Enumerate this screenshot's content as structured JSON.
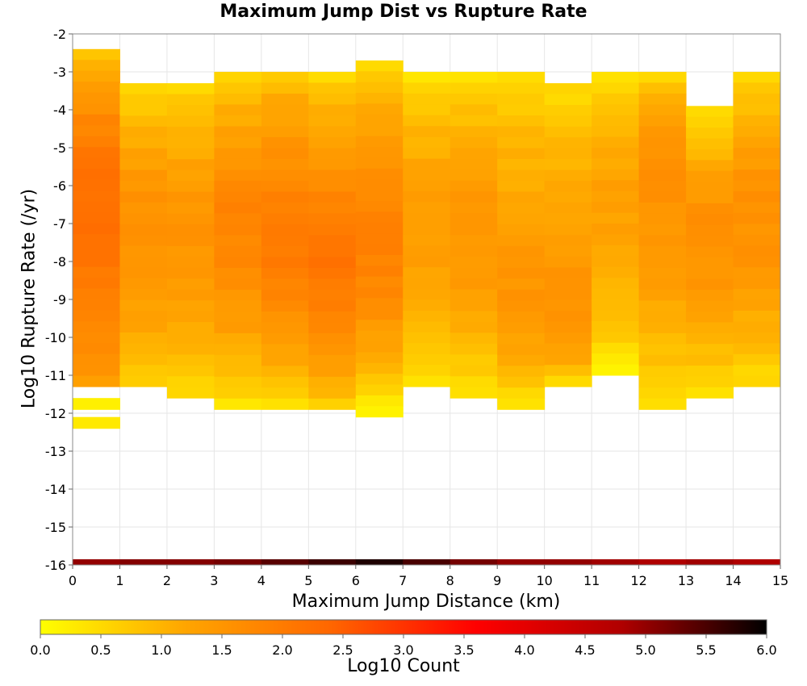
{
  "chart_data": {
    "type": "heatmap",
    "title": "Maximum Jump Dist vs Rupture Rate",
    "xlabel": "Maximum Jump Distance (km)",
    "ylabel": "Log10 Rupture Rate (/yr)",
    "colorbar_label": "Log10 Count",
    "xlim": [
      0,
      15
    ],
    "ylim": [
      -16,
      -2
    ],
    "x_ticks": [
      "0",
      "1",
      "2",
      "3",
      "4",
      "5",
      "6",
      "7",
      "8",
      "9",
      "10",
      "11",
      "12",
      "13",
      "14",
      "15"
    ],
    "y_ticks": [
      "-2",
      "-3",
      "-4",
      "-5",
      "-6",
      "-7",
      "-8",
      "-9",
      "-10",
      "-11",
      "-12",
      "-13",
      "-14",
      "-15",
      "-16"
    ],
    "colorbar_ticks": [
      "0.0",
      "0.5",
      "1.0",
      "1.5",
      "2.0",
      "2.5",
      "3.0",
      "3.5",
      "4.0",
      "4.5",
      "5.0",
      "5.5",
      "6.0"
    ],
    "colorbar_range": [
      0,
      6
    ],
    "colorscale": [
      "#ffff00",
      "#ffa500",
      "#ff6600",
      "#ff0000",
      "#b00000",
      "#000000"
    ],
    "grid": true,
    "y_bin_width": 0.2857,
    "columns": [
      {
        "x": 0,
        "y_max": -2.4,
        "y_min": -11.3,
        "peak": -5.8,
        "top_count": 0.6,
        "peak_count": 2.2,
        "bottom_count": 1.3,
        "isolated": [
          [
            -11.6,
            -11.9,
            0.2
          ],
          [
            -12.1,
            -12.4,
            0.3
          ]
        ]
      },
      {
        "x": 1,
        "y_max": -3.3,
        "y_min": -11.3,
        "peak": -6.5,
        "top_count": 0.2,
        "peak_count": 1.6,
        "bottom_count": 0.6,
        "isolated": []
      },
      {
        "x": 2,
        "y_max": -3.3,
        "y_min": -11.6,
        "peak": -6.8,
        "top_count": 0.4,
        "peak_count": 1.5,
        "bottom_count": 0.4,
        "isolated": []
      },
      {
        "x": 3,
        "y_max": -3.0,
        "y_min": -11.9,
        "peak": -6.5,
        "top_count": 0.3,
        "peak_count": 1.8,
        "bottom_count": 0.3,
        "isolated": []
      },
      {
        "x": 4,
        "y_max": -3.0,
        "y_min": -11.9,
        "peak": -7.0,
        "top_count": 0.5,
        "peak_count": 2.0,
        "bottom_count": 0.3,
        "isolated": []
      },
      {
        "x": 5,
        "y_max": -3.0,
        "y_min": -11.9,
        "peak": -7.7,
        "top_count": 0.2,
        "peak_count": 2.1,
        "bottom_count": 0.6,
        "isolated": []
      },
      {
        "x": 6,
        "y_max": -2.7,
        "y_min": -12.1,
        "peak": -7.0,
        "top_count": 0.2,
        "peak_count": 1.9,
        "bottom_count": 0.1,
        "isolated": []
      },
      {
        "x": 7,
        "y_max": -3.0,
        "y_min": -11.3,
        "peak": -6.5,
        "top_count": 0.2,
        "peak_count": 1.4,
        "bottom_count": 0.4,
        "isolated": []
      },
      {
        "x": 8,
        "y_max": -3.0,
        "y_min": -11.6,
        "peak": -6.8,
        "top_count": 0.2,
        "peak_count": 1.5,
        "bottom_count": 0.3,
        "isolated": []
      },
      {
        "x": 9,
        "y_max": -3.0,
        "y_min": -11.9,
        "peak": -8.5,
        "top_count": 0.3,
        "peak_count": 1.5,
        "bottom_count": 0.3,
        "isolated": []
      },
      {
        "x": 10,
        "y_max": -3.3,
        "y_min": -11.3,
        "peak": -9.4,
        "top_count": 0.3,
        "peak_count": 1.6,
        "bottom_count": 0.4,
        "isolated": []
      },
      {
        "x": 11,
        "y_max": -3.0,
        "y_min": -11.0,
        "peak": -6.0,
        "top_count": 0.1,
        "peak_count": 1.3,
        "bottom_count": 0.2,
        "isolated": []
      },
      {
        "x": 12,
        "y_max": -3.0,
        "y_min": -11.9,
        "peak": -5.2,
        "top_count": 0.3,
        "peak_count": 1.6,
        "bottom_count": 0.3,
        "isolated": []
      },
      {
        "x": 13,
        "y_max": -3.9,
        "y_min": -11.6,
        "peak": -6.8,
        "top_count": 0.1,
        "peak_count": 1.6,
        "bottom_count": 0.3,
        "isolated": []
      },
      {
        "x": 14,
        "y_max": -3.0,
        "y_min": -11.3,
        "peak": -6.2,
        "top_count": 0.2,
        "peak_count": 1.6,
        "bottom_count": 0.4,
        "isolated": []
      }
    ],
    "bottom_row": {
      "y_range": [
        -16,
        -15.85
      ],
      "counts": [
        5.0,
        5.1,
        5.1,
        5.2,
        5.4,
        5.6,
        5.8,
        5.5,
        5.2,
        5.0,
        5.0,
        4.9,
        4.8,
        4.9,
        4.8
      ]
    }
  }
}
